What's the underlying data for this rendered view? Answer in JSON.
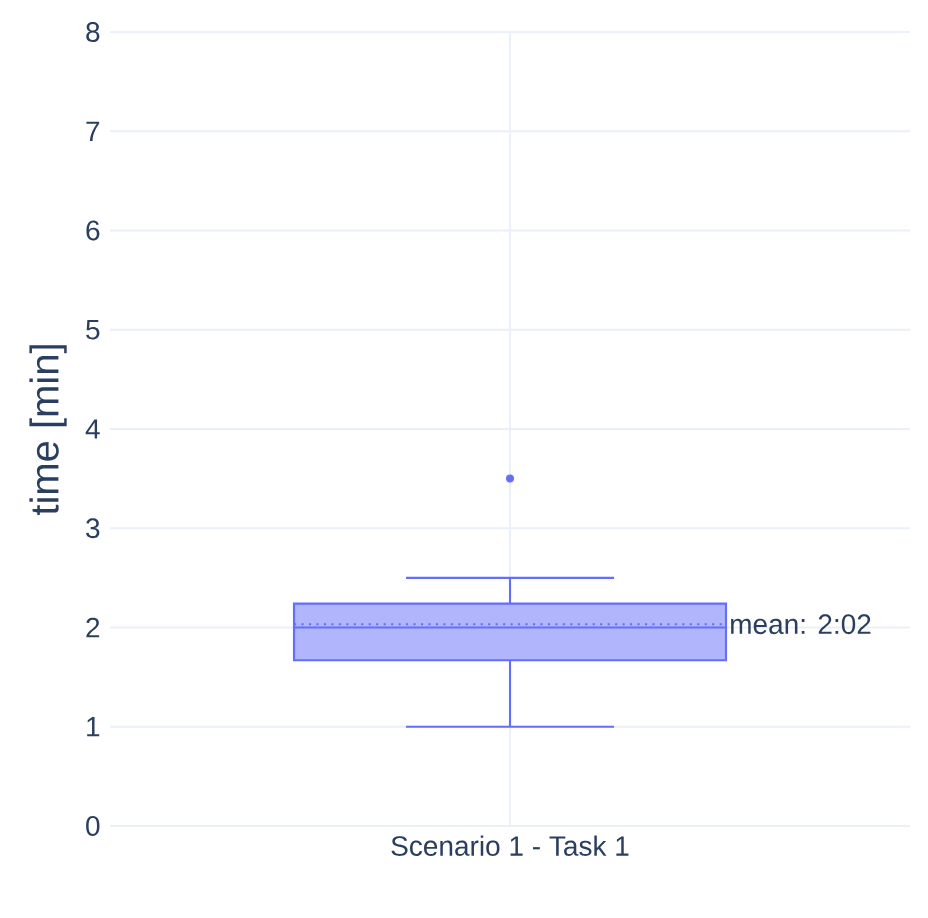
{
  "chart_data": {
    "type": "box",
    "ylabel": "time [min]",
    "categories": [
      "Scenario 1 - Task 1"
    ],
    "boxes": [
      {
        "low": 1.0,
        "q1": 1.67,
        "median": 2.0,
        "q3": 2.24,
        "high": 2.5,
        "mean": 2.033,
        "outliers": [
          3.5
        ]
      }
    ],
    "color": "#636efa",
    "ylim": [
      0,
      8
    ],
    "yticks": [
      0,
      1,
      2,
      3,
      4,
      5,
      6,
      7,
      8
    ],
    "grid": true,
    "annotations": [
      "mean: 2:02"
    ]
  }
}
